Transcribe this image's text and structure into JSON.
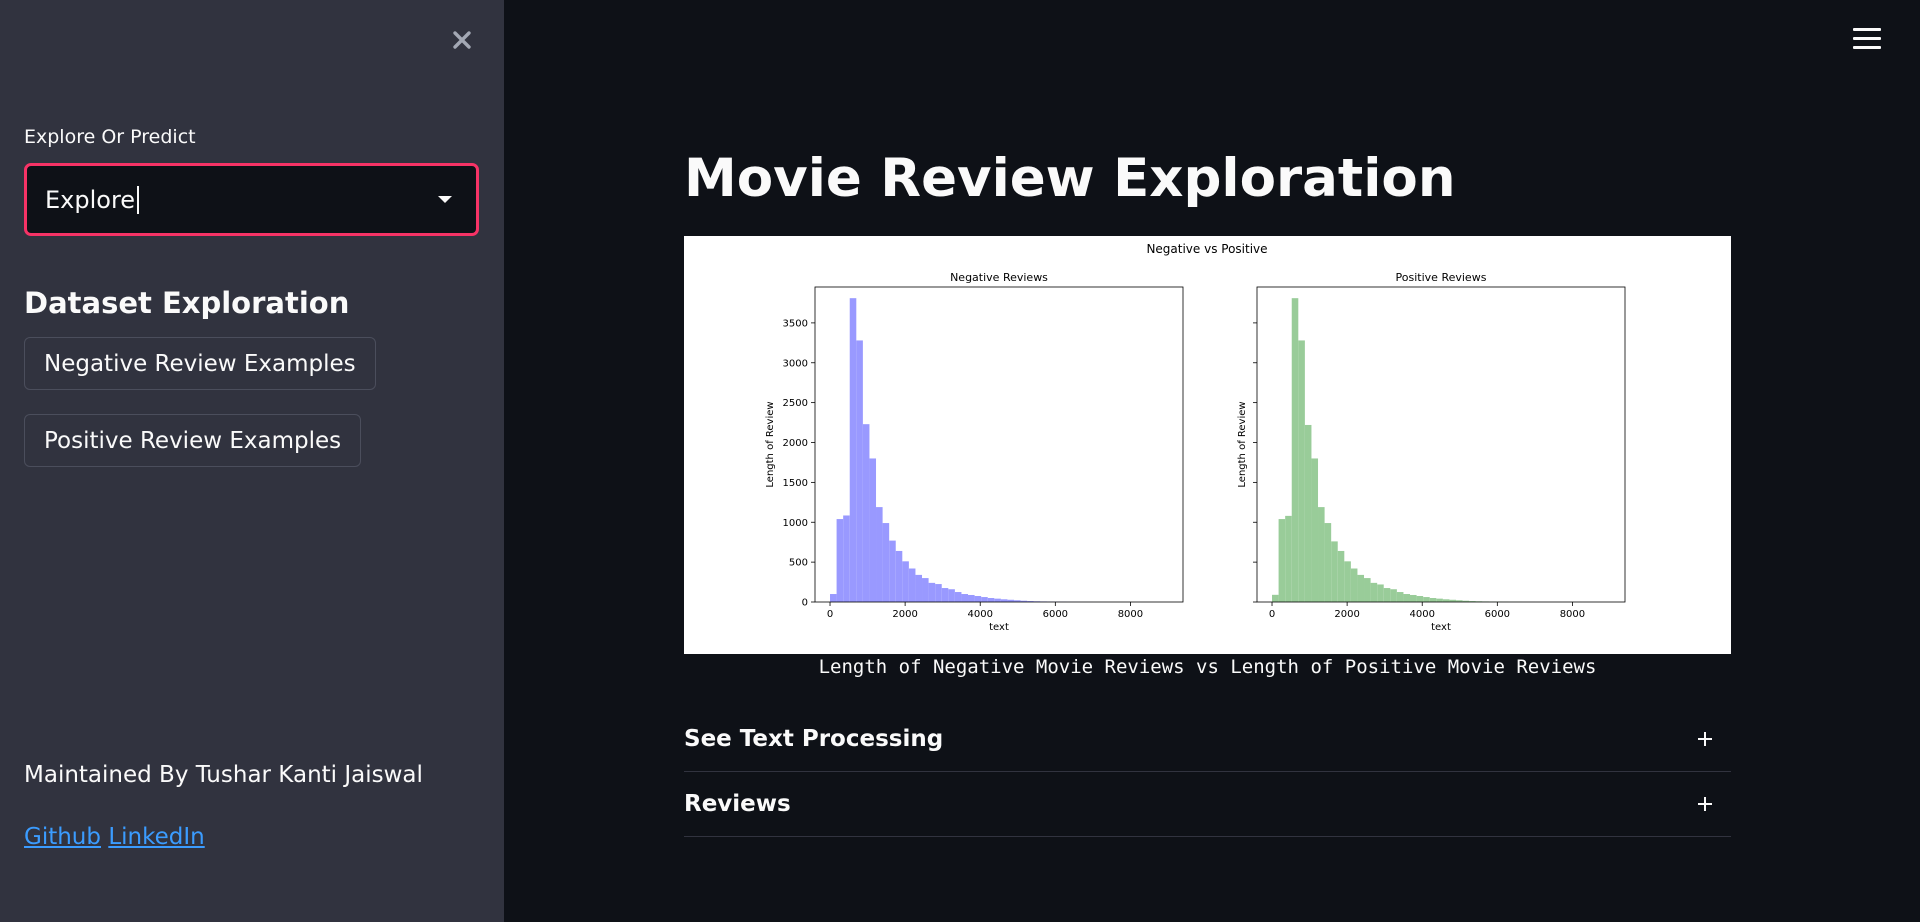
{
  "sidebar": {
    "select_label": "Explore Or Predict",
    "select_value": "Explore",
    "section_title": "Dataset Exploration",
    "buttons": [
      "Negative Review Examples",
      "Positive Review Examples"
    ],
    "maintainer": "Maintained By Tushar Kanti Jaiswal",
    "links": [
      "Github",
      "LinkedIn"
    ]
  },
  "main": {
    "title": "Movie Review Exploration",
    "caption": "Length of Negative Movie Reviews vs Length of Positive Movie Reviews",
    "expanders": [
      "See Text Processing",
      "Reviews"
    ]
  },
  "colors": {
    "accent": "#f63366",
    "link": "#3b9cff",
    "negative_bar": "#9999ff",
    "positive_bar": "#99cc99"
  },
  "chart_data": {
    "type": "bar",
    "title": "Negative vs Positive",
    "bin_width": 175,
    "x_start": 0,
    "xlim": [
      -400,
      9400
    ],
    "ylim": [
      0,
      3950
    ],
    "xticks": [
      0,
      2000,
      4000,
      6000,
      8000
    ],
    "yticks": [
      0,
      500,
      1000,
      1500,
      2000,
      2500,
      3000,
      3500
    ],
    "subplots": [
      {
        "title": "Negative Reviews",
        "xlabel": "text",
        "ylabel": "Length of Review",
        "color": "#9999ff",
        "values": [
          100,
          1040,
          1085,
          3810,
          3280,
          2230,
          1800,
          1190,
          990,
          770,
          640,
          510,
          420,
          340,
          300,
          240,
          225,
          175,
          160,
          125,
          100,
          88,
          75,
          62,
          50,
          42,
          34,
          28,
          22,
          16,
          12,
          9,
          7,
          5,
          4,
          3,
          2,
          2,
          1,
          1
        ]
      },
      {
        "title": "Positive Reviews",
        "xlabel": "text",
        "ylabel": "Length of Review",
        "color": "#99cc99",
        "values": [
          90,
          1040,
          1080,
          3810,
          3280,
          2220,
          1800,
          1190,
          990,
          760,
          640,
          510,
          420,
          340,
          300,
          240,
          220,
          175,
          160,
          125,
          100,
          88,
          75,
          62,
          50,
          42,
          34,
          28,
          22,
          16,
          12,
          9,
          7,
          5,
          4,
          3,
          2,
          2,
          1,
          1
        ]
      }
    ]
  }
}
